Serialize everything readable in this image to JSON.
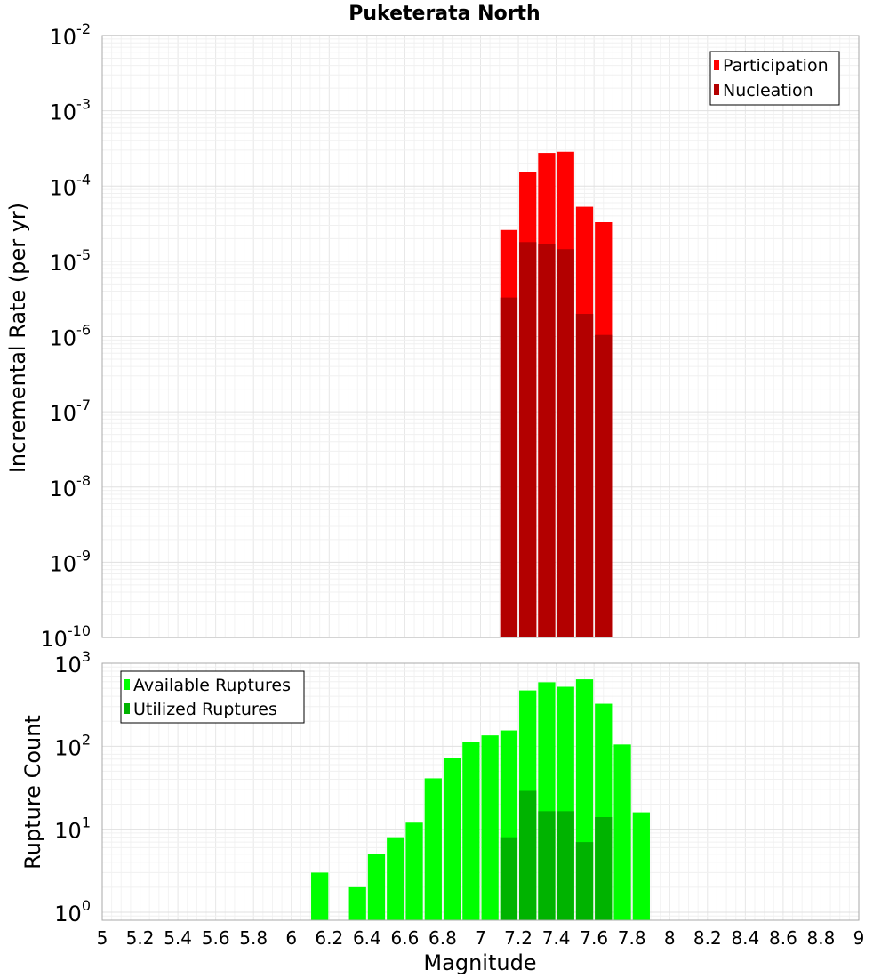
{
  "chart_data": {
    "title": "Puketerata North",
    "xlabel": "Magnitude",
    "xlim": [
      5,
      9
    ],
    "x_ticks": [
      "5",
      "5.2",
      "5.4",
      "5.6",
      "5.8",
      "6",
      "6.2",
      "6.4",
      "6.6",
      "6.8",
      "7",
      "7.2",
      "7.4",
      "7.6",
      "7.8",
      "8",
      "8.2",
      "8.4",
      "8.6",
      "8.8",
      "9"
    ],
    "grid": true,
    "panels": [
      {
        "type": "bar",
        "scale": "log",
        "ylabel": "Incremental Rate (per yr)",
        "ylim": [
          1e-10,
          0.01
        ],
        "y_ticks": [
          {
            "base": "10",
            "exp": "-2"
          },
          {
            "base": "10",
            "exp": "-3"
          },
          {
            "base": "10",
            "exp": "-4"
          },
          {
            "base": "10",
            "exp": "-5"
          },
          {
            "base": "10",
            "exp": "-6"
          },
          {
            "base": "10",
            "exp": "-7"
          },
          {
            "base": "10",
            "exp": "-8"
          },
          {
            "base": "10",
            "exp": "-9"
          },
          {
            "base": "10",
            "exp": "-10"
          }
        ],
        "legend_position": "top-right",
        "series": [
          {
            "name": "Participation",
            "color": "#ff0000",
            "x": [
              7.15,
              7.25,
              7.35,
              7.45,
              7.55,
              7.65
            ],
            "values": [
              2.6e-05,
              0.000155,
              0.000275,
              0.000285,
              5.3e-05,
              3.3e-05
            ]
          },
          {
            "name": "Nucleation",
            "color": "#b30000",
            "x": [
              7.15,
              7.25,
              7.35,
              7.45,
              7.55,
              7.65
            ],
            "values": [
              3.3e-06,
              1.8e-05,
              1.7e-05,
              1.45e-05,
              2e-06,
              1.05e-06
            ]
          }
        ]
      },
      {
        "type": "bar",
        "scale": "log",
        "ylabel": "Rupture Count",
        "ylim": [
          0.8,
          1000
        ],
        "y_ticks": [
          {
            "base": "10",
            "exp": "3"
          },
          {
            "base": "10",
            "exp": "2"
          },
          {
            "base": "10",
            "exp": "1"
          },
          {
            "base": "10",
            "exp": "0"
          }
        ],
        "legend_position": "top-left",
        "series": [
          {
            "name": "Available Ruptures",
            "color": "#00ff00",
            "x": [
              6.15,
              6.35,
              6.45,
              6.55,
              6.65,
              6.75,
              6.85,
              6.95,
              7.05,
              7.15,
              7.25,
              7.35,
              7.45,
              7.55,
              7.65,
              7.75,
              7.85
            ],
            "values": [
              3,
              2,
              5,
              8,
              12,
              41,
              72,
              112,
              135,
              155,
              470,
              590,
              520,
              640,
              325,
              105,
              16
            ]
          },
          {
            "name": "Utilized Ruptures",
            "color": "#00b300",
            "x": [
              7.15,
              7.25,
              7.35,
              7.45,
              7.55,
              7.65
            ],
            "values": [
              8,
              29,
              16.5,
              16.5,
              7,
              14
            ]
          }
        ]
      }
    ]
  }
}
